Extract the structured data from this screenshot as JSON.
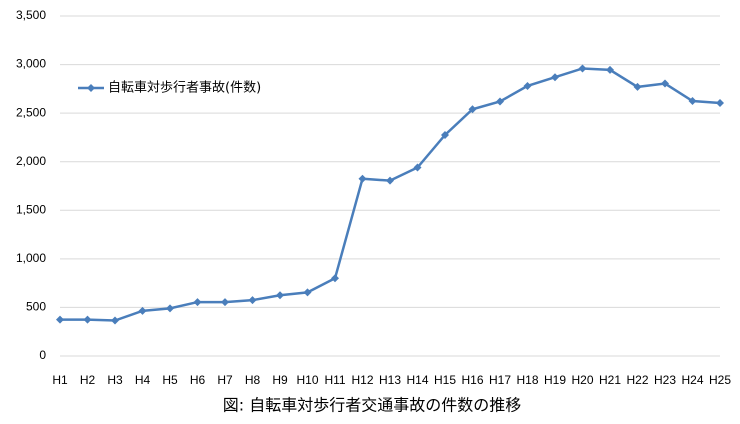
{
  "chart_data": {
    "type": "line",
    "title": "図: 自転車対歩行者交通事故の件数の推移",
    "categories": [
      "H1",
      "H2",
      "H3",
      "H4",
      "H5",
      "H6",
      "H7",
      "H8",
      "H9",
      "H10",
      "H11",
      "H12",
      "H13",
      "H14",
      "H15",
      "H16",
      "H17",
      "H18",
      "H19",
      "H20",
      "H21",
      "H22",
      "H23",
      "H24",
      "H25"
    ],
    "series": [
      {
        "name": "自転車対歩行者事故(件数)",
        "color": "#4a7ebb",
        "values": [
          375,
          375,
          365,
          465,
          490,
          555,
          555,
          575,
          625,
          655,
          800,
          1825,
          1805,
          1940,
          2275,
          2540,
          2620,
          2780,
          2870,
          2960,
          2945,
          2770,
          2805,
          2625,
          2605
        ]
      }
    ],
    "ylim": [
      0,
      3500
    ],
    "yticks": [
      0,
      500,
      {
        "value": 1000,
        "label": "1,000"
      },
      {
        "value": 1500,
        "label": "1,500"
      },
      {
        "value": 2000,
        "label": "2,000"
      },
      {
        "value": 2500,
        "label": "2,500"
      },
      {
        "value": 3000,
        "label": "3,000"
      },
      {
        "value": 3500,
        "label": "3,500"
      }
    ],
    "grid": true,
    "legend": "top-left"
  }
}
